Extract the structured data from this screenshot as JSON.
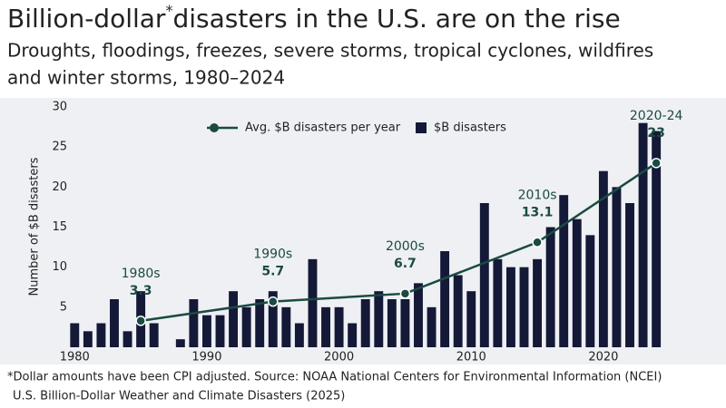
{
  "chart_data": {
    "type": "combo",
    "title_parts": [
      "Billion-dollar",
      "*",
      "disasters in the U.S. are on the rise"
    ],
    "subtitle_lines": [
      "Droughts, floodings, freezes, severe storms, tropical cyclones, wildfires",
      "and winter storms, 1980–2024"
    ],
    "ylabel": "Number of $B disasters",
    "xlim": [
      1979.5,
      2025.5
    ],
    "xticks": [
      1980,
      1990,
      2000,
      2010,
      2020
    ],
    "ylim": [
      0,
      30
    ],
    "yticks": [
      5,
      10,
      15,
      20,
      25,
      30
    ],
    "series": [
      {
        "name": "Avg. $B disasters per year",
        "type": "line",
        "color": "#1b4a42",
        "x": [
          1985,
          1995,
          2005,
          2015,
          2024
        ],
        "values": [
          3.3,
          5.7,
          6.7,
          13.1,
          23
        ],
        "labels": [
          "1980s",
          "1990s",
          "2000s",
          "2010s",
          "2020-24"
        ]
      },
      {
        "name": "$B disasters",
        "type": "bar",
        "color": "#141937",
        "x": [
          1980,
          1981,
          1982,
          1983,
          1984,
          1985,
          1986,
          1987,
          1988,
          1989,
          1990,
          1991,
          1992,
          1993,
          1994,
          1995,
          1996,
          1997,
          1998,
          1999,
          2000,
          2001,
          2002,
          2003,
          2004,
          2005,
          2006,
          2007,
          2008,
          2009,
          2010,
          2011,
          2012,
          2013,
          2014,
          2015,
          2016,
          2017,
          2018,
          2019,
          2020,
          2021,
          2022,
          2023,
          2024
        ],
        "values": [
          3,
          2,
          3,
          6,
          2,
          7,
          3,
          0,
          1,
          6,
          4,
          4,
          7,
          5,
          6,
          7,
          5,
          3,
          11,
          5,
          5,
          3,
          6,
          7,
          6,
          6,
          8,
          5,
          12,
          9,
          7,
          18,
          11,
          10,
          10,
          11,
          15,
          19,
          16,
          14,
          22,
          20,
          18,
          28,
          27
        ]
      }
    ],
    "footnote_lines": [
      "*Dollar amounts have been CPI adjusted. Source: NOAA National Centers for Environmental Information (NCEI)",
      "U.S. Billion-Dollar Weather and Climate Disasters (2025)"
    ]
  }
}
